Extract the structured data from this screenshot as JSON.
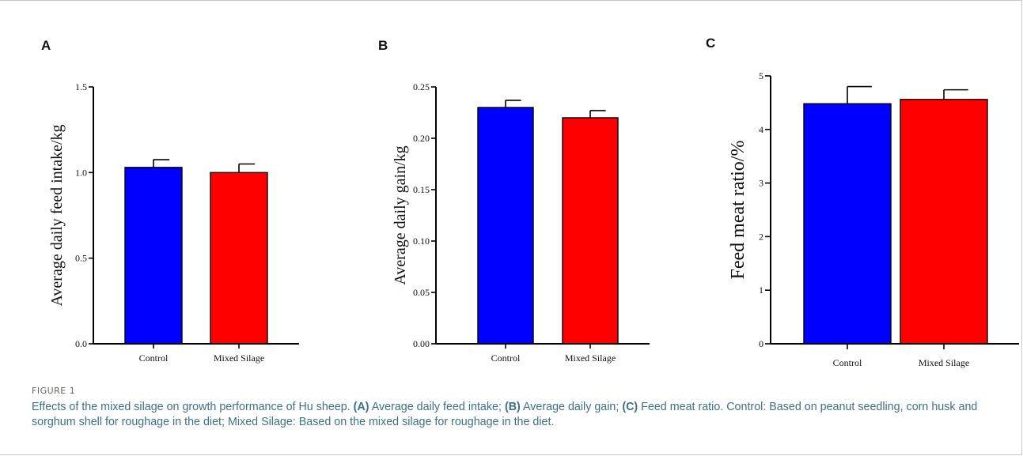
{
  "figure": {
    "label": "FIGURE 1",
    "caption": {
      "intro": "Effects of the mixed silage on growth performance of Hu sheep.",
      "a_tag": "(A)",
      "a_text": "Average daily feed intake;",
      "b_tag": "(B)",
      "b_text": "Average daily gain;",
      "c_tag": "(C)",
      "c_text": "Feed meat ratio. Control: Based on peanut seedling, corn husk and sorghum shell for roughage in the diet; Mixed Silage: Based on the mixed silage for roughage in the diet."
    }
  },
  "colors": {
    "control": "#0000ff",
    "mixed": "#ff0000",
    "axis": "#000000"
  },
  "chart_data": [
    {
      "type": "bar",
      "panel": "A",
      "categories": [
        "Control",
        "Mixed Silage"
      ],
      "values": [
        1.03,
        1.0
      ],
      "errors": [
        0.045,
        0.05
      ],
      "ylabel": "Average daily feed intake/kg",
      "ylim": [
        0,
        1.5
      ],
      "yticks": [
        "0.0",
        "0.5",
        "1.0",
        "1.5"
      ],
      "ytick_values": [
        0,
        0.5,
        1.0,
        1.5
      ]
    },
    {
      "type": "bar",
      "panel": "B",
      "categories": [
        "Control",
        "Mixed Silage"
      ],
      "values": [
        0.23,
        0.22
      ],
      "errors": [
        0.007,
        0.007
      ],
      "ylabel": "Average daily gain/kg",
      "ylim": [
        0,
        0.25
      ],
      "yticks": [
        "0.00",
        "0.05",
        "0.10",
        "0.15",
        "0.20",
        "0.25"
      ],
      "ytick_values": [
        0,
        0.05,
        0.1,
        0.15,
        0.2,
        0.25
      ]
    },
    {
      "type": "bar",
      "panel": "C",
      "categories": [
        "Control",
        "Mixed Silage"
      ],
      "values": [
        4.48,
        4.56
      ],
      "errors": [
        0.32,
        0.18
      ],
      "ylabel": "Feed meat ratio/%",
      "ylim": [
        0,
        5
      ],
      "yticks": [
        "0",
        "1",
        "2",
        "3",
        "4",
        "5"
      ],
      "ytick_values": [
        0,
        1,
        2,
        3,
        4,
        5
      ]
    }
  ]
}
